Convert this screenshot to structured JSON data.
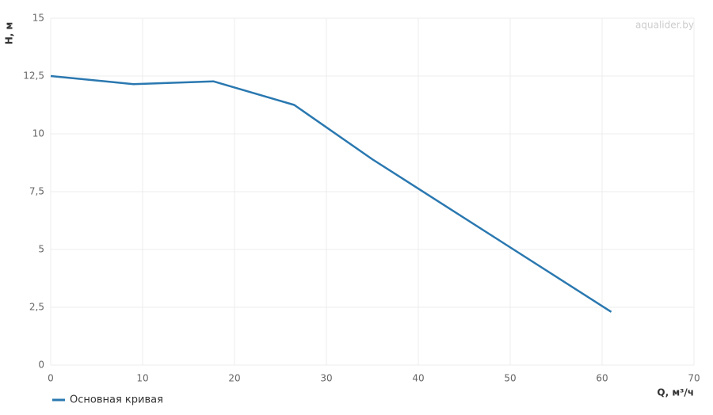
{
  "chart_data": {
    "type": "line",
    "x": [
      0,
      9,
      17.7,
      26.5,
      35,
      61
    ],
    "series": [
      {
        "name": "Основная кривая",
        "color": "#2a78b0",
        "values": [
          12.5,
          12.15,
          12.27,
          11.25,
          8.9,
          2.3
        ]
      }
    ],
    "xlim": [
      0,
      70
    ],
    "xticks": [
      0,
      10,
      20,
      30,
      40,
      50,
      60,
      70
    ],
    "ylim": [
      0,
      15
    ],
    "yticks": [
      0,
      {
        "value": 2.5,
        "label": "2,5"
      },
      5,
      {
        "value": 7.5,
        "label": "7,5"
      },
      10,
      {
        "value": 12.5,
        "label": "12,5"
      },
      15
    ],
    "x_label": "Q, м³/ч",
    "y_label": "H, м",
    "watermark": "aqualider.by",
    "grid": true,
    "legend": "bottom-left"
  }
}
